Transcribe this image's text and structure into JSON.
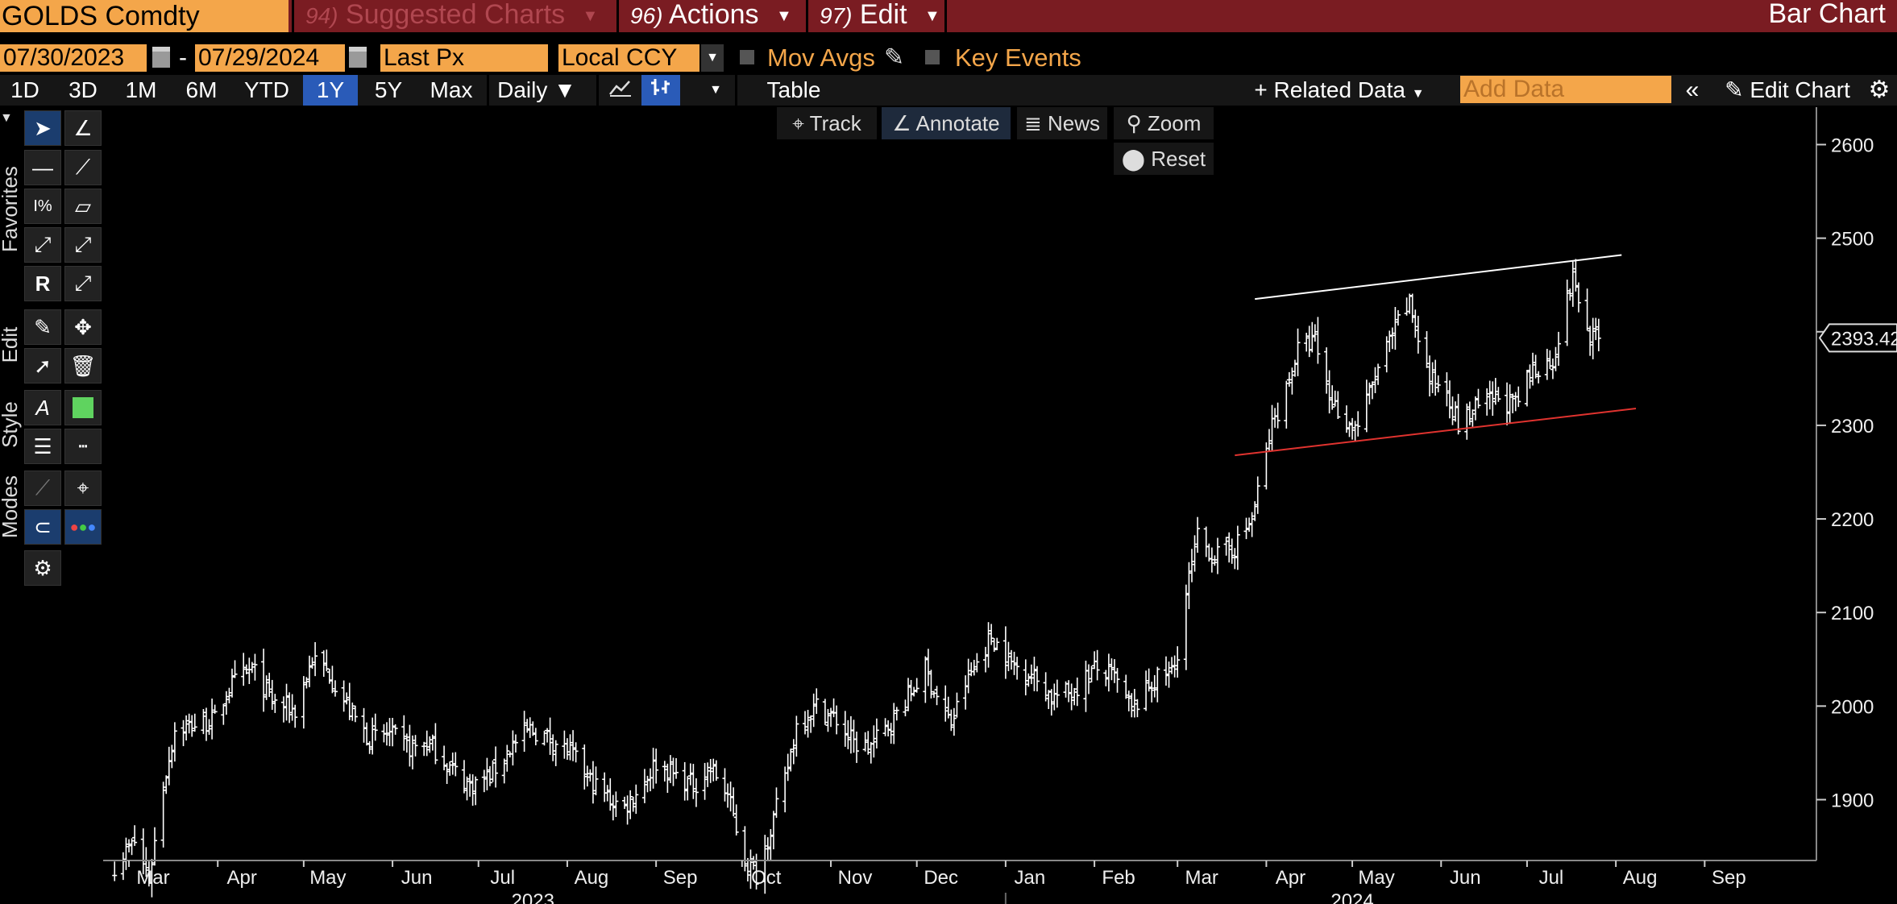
{
  "header": {
    "ticker": "GOLDS Comdty",
    "menus": [
      {
        "num": "94)",
        "label": "Suggested Charts",
        "dim": true
      },
      {
        "num": "96)",
        "label": "Actions",
        "dim": false
      },
      {
        "num": "97)",
        "label": "Edit",
        "dim": false
      }
    ],
    "chart_type": "Bar Chart"
  },
  "controls": {
    "start_date": "07/30/2023",
    "date_sep": "-",
    "end_date": "07/29/2024",
    "field": "Last Px",
    "currency": "Local CCY",
    "mov_avgs": "Mov Avgs",
    "key_events": "Key Events"
  },
  "periods": [
    "1D",
    "3D",
    "1M",
    "6M",
    "YTD",
    "1Y",
    "5Y",
    "Max"
  ],
  "active_period": "1Y",
  "frequency": "Daily",
  "table_label": "Table",
  "related_data": "Related Data",
  "add_data_placeholder": "Add Data",
  "edit_chart": "Edit Chart",
  "chart_toolbar": {
    "track": "Track",
    "annotate": "Annotate",
    "news": "News",
    "zoom": "Zoom",
    "reset": "Reset"
  },
  "side_tabs": [
    "Favorites",
    "Edit",
    "Style",
    "Modes"
  ],
  "icons": [
    "cursor-icon",
    "draw-icon",
    "line-icon",
    "trend-icon",
    "fib-percent-icon",
    "channel-icon",
    "segment-icon",
    "ray-icon",
    "regression-icon",
    "extend-icon",
    "pencil-icon",
    "move-icon",
    "select-plus-icon",
    "trash-icon",
    "text-style-icon",
    "color-swatch-icon",
    "line-weight-icon",
    "line-style-icon",
    "dashed-icon",
    "snap-icon",
    "magnet-icon",
    "color-mode-icon",
    "gear-icon"
  ],
  "colors": {
    "accent": "#f4a64a",
    "menu_bg": "#7a1c22",
    "active": "#2a5bb8",
    "support_line": "#e0332f",
    "resistance_line": "#ffffff",
    "price": "#ffffff"
  },
  "chart_data": {
    "type": "ohlc-bar",
    "title": "",
    "xlabel": "",
    "ylabel": "",
    "last_price_label": "2393.42",
    "ylim": [
      1835,
      2640
    ],
    "yticks": [
      1900,
      2000,
      2100,
      2200,
      2300,
      2400,
      2500,
      2600
    ],
    "x_range": [
      "2023-02-20",
      "2024-10-10"
    ],
    "x_month_labels": [
      {
        "date": "2023-03-01",
        "label": "Mar"
      },
      {
        "date": "2023-04-01",
        "label": "Apr"
      },
      {
        "date": "2023-05-01",
        "label": "May"
      },
      {
        "date": "2023-06-01",
        "label": "Jun"
      },
      {
        "date": "2023-07-01",
        "label": "Jul"
      },
      {
        "date": "2023-08-01",
        "label": "Aug"
      },
      {
        "date": "2023-09-01",
        "label": "Sep"
      },
      {
        "date": "2023-10-01",
        "label": "Oct"
      },
      {
        "date": "2023-11-01",
        "label": "Nov"
      },
      {
        "date": "2023-12-01",
        "label": "Dec"
      },
      {
        "date": "2024-01-01",
        "label": "Jan"
      },
      {
        "date": "2024-02-01",
        "label": "Feb"
      },
      {
        "date": "2024-03-01",
        "label": "Mar"
      },
      {
        "date": "2024-04-01",
        "label": "Apr"
      },
      {
        "date": "2024-05-01",
        "label": "May"
      },
      {
        "date": "2024-06-01",
        "label": "Jun"
      },
      {
        "date": "2024-07-01",
        "label": "Jul"
      },
      {
        "date": "2024-08-01",
        "label": "Aug"
      },
      {
        "date": "2024-09-01",
        "label": "Sep"
      }
    ],
    "x_year_labels": [
      {
        "date": "2023-07-20",
        "label": "2023"
      },
      {
        "date": "2024-05-01",
        "label": "2024"
      }
    ],
    "close_path": [
      [
        "2023-02-24",
        1830
      ],
      [
        "2023-03-03",
        1855
      ],
      [
        "2023-03-08",
        1815
      ],
      [
        "2023-03-13",
        1915
      ],
      [
        "2023-03-17",
        1975
      ],
      [
        "2023-03-24",
        1980
      ],
      [
        "2023-03-31",
        1985
      ],
      [
        "2023-04-05",
        2020
      ],
      [
        "2023-04-13",
        2040
      ],
      [
        "2023-04-20",
        2005
      ],
      [
        "2023-04-28",
        1995
      ],
      [
        "2023-05-04",
        2050
      ],
      [
        "2023-05-10",
        2035
      ],
      [
        "2023-05-17",
        1995
      ],
      [
        "2023-05-24",
        1965
      ],
      [
        "2023-05-31",
        1970
      ],
      [
        "2023-06-07",
        1955
      ],
      [
        "2023-06-14",
        1960
      ],
      [
        "2023-06-21",
        1935
      ],
      [
        "2023-06-28",
        1915
      ],
      [
        "2023-07-05",
        1925
      ],
      [
        "2023-07-12",
        1955
      ],
      [
        "2023-07-19",
        1975
      ],
      [
        "2023-07-26",
        1965
      ],
      [
        "2023-08-02",
        1950
      ],
      [
        "2023-08-09",
        1920
      ],
      [
        "2023-08-16",
        1900
      ],
      [
        "2023-08-21",
        1892
      ],
      [
        "2023-08-28",
        1920
      ],
      [
        "2023-09-01",
        1940
      ],
      [
        "2023-09-08",
        1925
      ],
      [
        "2023-09-14",
        1915
      ],
      [
        "2023-09-20",
        1935
      ],
      [
        "2023-09-26",
        1905
      ],
      [
        "2023-10-02",
        1835
      ],
      [
        "2023-10-06",
        1820
      ],
      [
        "2023-10-10",
        1860
      ],
      [
        "2023-10-16",
        1920
      ],
      [
        "2023-10-20",
        1980
      ],
      [
        "2023-10-27",
        2000
      ],
      [
        "2023-11-03",
        1985
      ],
      [
        "2023-11-09",
        1960
      ],
      [
        "2023-11-14",
        1955
      ],
      [
        "2023-11-20",
        1975
      ],
      [
        "2023-11-28",
        2010
      ],
      [
        "2023-12-04",
        2040
      ],
      [
        "2023-12-08",
        2010
      ],
      [
        "2023-12-13",
        1980
      ],
      [
        "2023-12-18",
        2025
      ],
      [
        "2023-12-27",
        2075
      ],
      [
        "2024-01-03",
        2045
      ],
      [
        "2024-01-10",
        2035
      ],
      [
        "2024-01-17",
        2010
      ],
      [
        "2024-01-24",
        2015
      ],
      [
        "2024-02-01",
        2040
      ],
      [
        "2024-02-08",
        2030
      ],
      [
        "2024-02-14",
        1995
      ],
      [
        "2024-02-21",
        2025
      ],
      [
        "2024-02-29",
        2040
      ],
      [
        "2024-03-04",
        2120
      ],
      [
        "2024-03-08",
        2180
      ],
      [
        "2024-03-14",
        2160
      ],
      [
        "2024-03-21",
        2170
      ],
      [
        "2024-03-27",
        2200
      ],
      [
        "2024-04-03",
        2300
      ],
      [
        "2024-04-08",
        2340
      ],
      [
        "2024-04-12",
        2380
      ],
      [
        "2024-04-18",
        2390
      ],
      [
        "2024-04-23",
        2330
      ],
      [
        "2024-04-30",
        2300
      ],
      [
        "2024-05-03",
        2300
      ],
      [
        "2024-05-10",
        2360
      ],
      [
        "2024-05-17",
        2410
      ],
      [
        "2024-05-21",
        2430
      ],
      [
        "2024-05-28",
        2350
      ],
      [
        "2024-06-03",
        2340
      ],
      [
        "2024-06-07",
        2300
      ],
      [
        "2024-06-14",
        2320
      ],
      [
        "2024-06-21",
        2330
      ],
      [
        "2024-06-27",
        2320
      ],
      [
        "2024-07-03",
        2360
      ],
      [
        "2024-07-10",
        2370
      ],
      [
        "2024-07-17",
        2460
      ],
      [
        "2024-07-22",
        2400
      ],
      [
        "2024-07-26",
        2390
      ]
    ],
    "trendlines": [
      {
        "name": "resistance",
        "from": [
          "2024-03-28",
          2435
        ],
        "to": [
          "2024-08-03",
          2482
        ],
        "color": "#ffffff"
      },
      {
        "name": "support",
        "from": [
          "2024-03-21",
          2268
        ],
        "to": [
          "2024-08-08",
          2318
        ],
        "color": "#e0332f"
      }
    ]
  }
}
